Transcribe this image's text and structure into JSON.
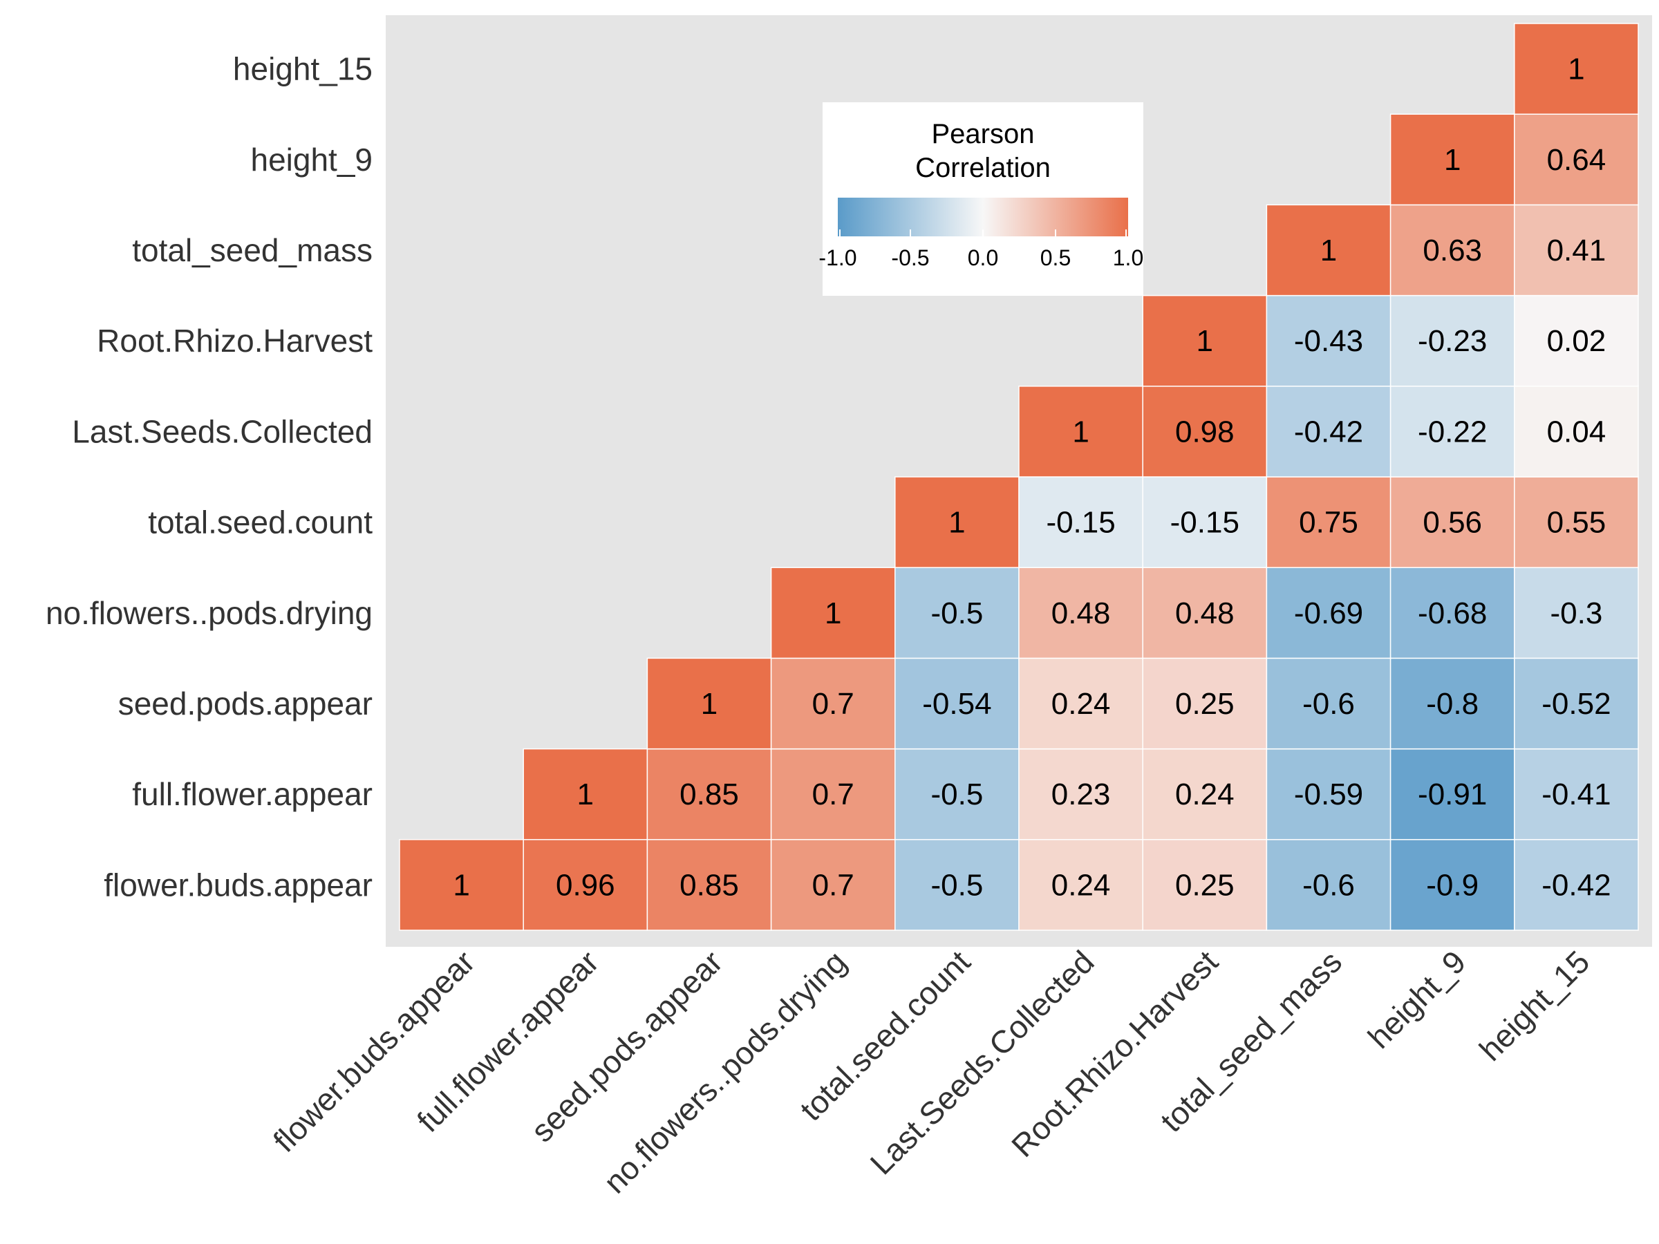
{
  "chart_data": {
    "type": "heatmap",
    "variables": [
      "flower.buds.appear",
      "full.flower.appear",
      "seed.pods.appear",
      "no.flowers..pods.drying",
      "total.seed.count",
      "Last.Seeds.Collected",
      "Root.Rhizo.Harvest",
      "total_seed_mass",
      "height_9",
      "height_15"
    ],
    "matrix": [
      [
        1,
        0.96,
        0.85,
        0.7,
        -0.5,
        0.24,
        0.25,
        -0.6,
        -0.9,
        -0.42
      ],
      [
        null,
        1,
        0.85,
        0.7,
        -0.5,
        0.23,
        0.24,
        -0.59,
        -0.91,
        -0.41
      ],
      [
        null,
        null,
        1,
        0.7,
        -0.54,
        0.24,
        0.25,
        -0.6,
        -0.8,
        -0.52
      ],
      [
        null,
        null,
        null,
        1,
        -0.5,
        0.48,
        0.48,
        -0.69,
        -0.68,
        -0.3
      ],
      [
        null,
        null,
        null,
        null,
        1,
        -0.15,
        -0.15,
        0.75,
        0.56,
        0.55
      ],
      [
        null,
        null,
        null,
        null,
        null,
        1,
        0.98,
        -0.42,
        -0.22,
        0.04
      ],
      [
        null,
        null,
        null,
        null,
        null,
        null,
        1,
        -0.43,
        -0.23,
        0.02
      ],
      [
        null,
        null,
        null,
        null,
        null,
        null,
        null,
        1,
        0.63,
        0.41
      ],
      [
        null,
        null,
        null,
        null,
        null,
        null,
        null,
        null,
        1,
        0.64
      ],
      [
        null,
        null,
        null,
        null,
        null,
        null,
        null,
        null,
        null,
        1
      ]
    ],
    "legend": {
      "title_line1": "Pearson",
      "title_line2": "Correlation",
      "range": [
        -1.0,
        1.0
      ],
      "ticks": [
        -1.0,
        -0.5,
        0.0,
        0.5,
        1.0
      ],
      "tick_labels": [
        "-1.0",
        "-0.5",
        "0.0",
        "0.5",
        "1.0"
      ],
      "placement": "top-center inside panel"
    },
    "colors": {
      "low": "#5a9bc9",
      "mid": "#f7f7f7",
      "high": "#e9704a",
      "panel_background": "#e5e5e5"
    },
    "grid": false
  }
}
